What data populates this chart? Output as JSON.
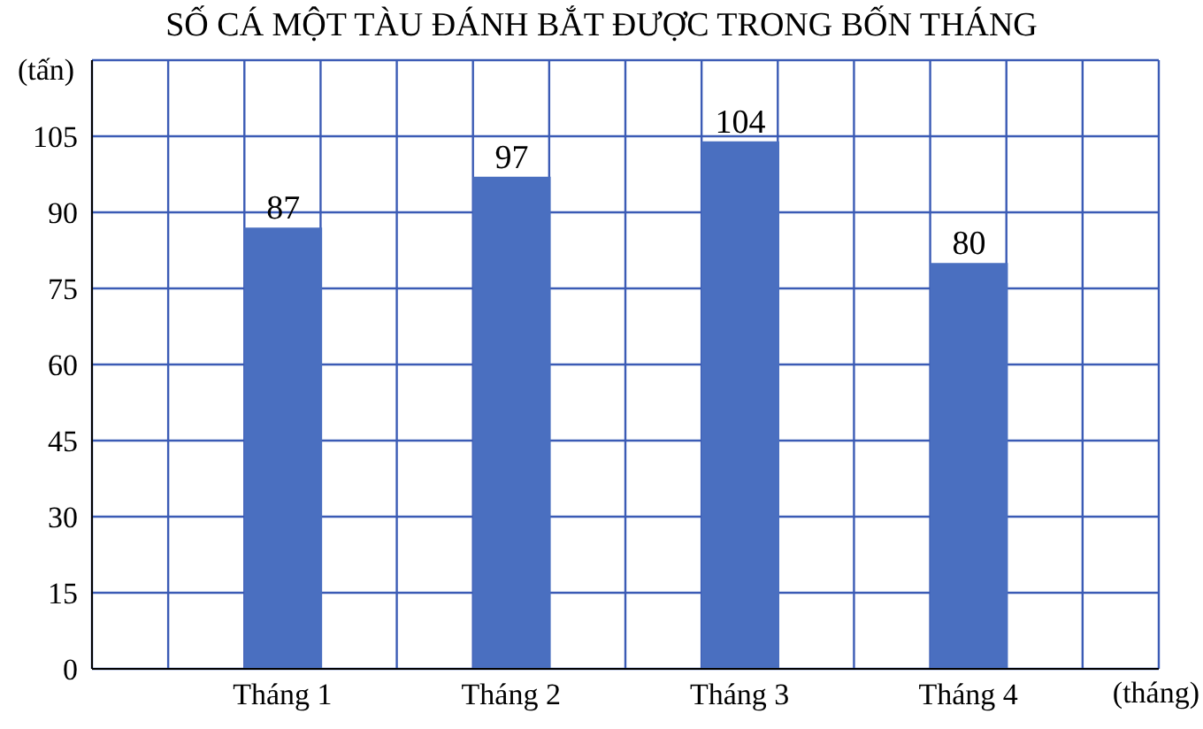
{
  "chart_data": {
    "type": "bar",
    "title": "SỐ CÁ MỘT TÀU ĐÁNH BẮT ĐƯỢC TRONG BỐN THÁNG",
    "xlabel": "(tháng)",
    "ylabel": "(tấn)",
    "categories": [
      "Tháng 1",
      "Tháng 2",
      "Tháng 3",
      "Tháng 4"
    ],
    "values": [
      87,
      97,
      104,
      80
    ],
    "color": "#4a6fc0",
    "ylim": [
      0,
      120
    ],
    "yticks": [
      0,
      15,
      30,
      45,
      60,
      75,
      90,
      105,
      {
        "value": 120,
        "label": null
      }
    ],
    "grid": true,
    "data_labels": true
  }
}
